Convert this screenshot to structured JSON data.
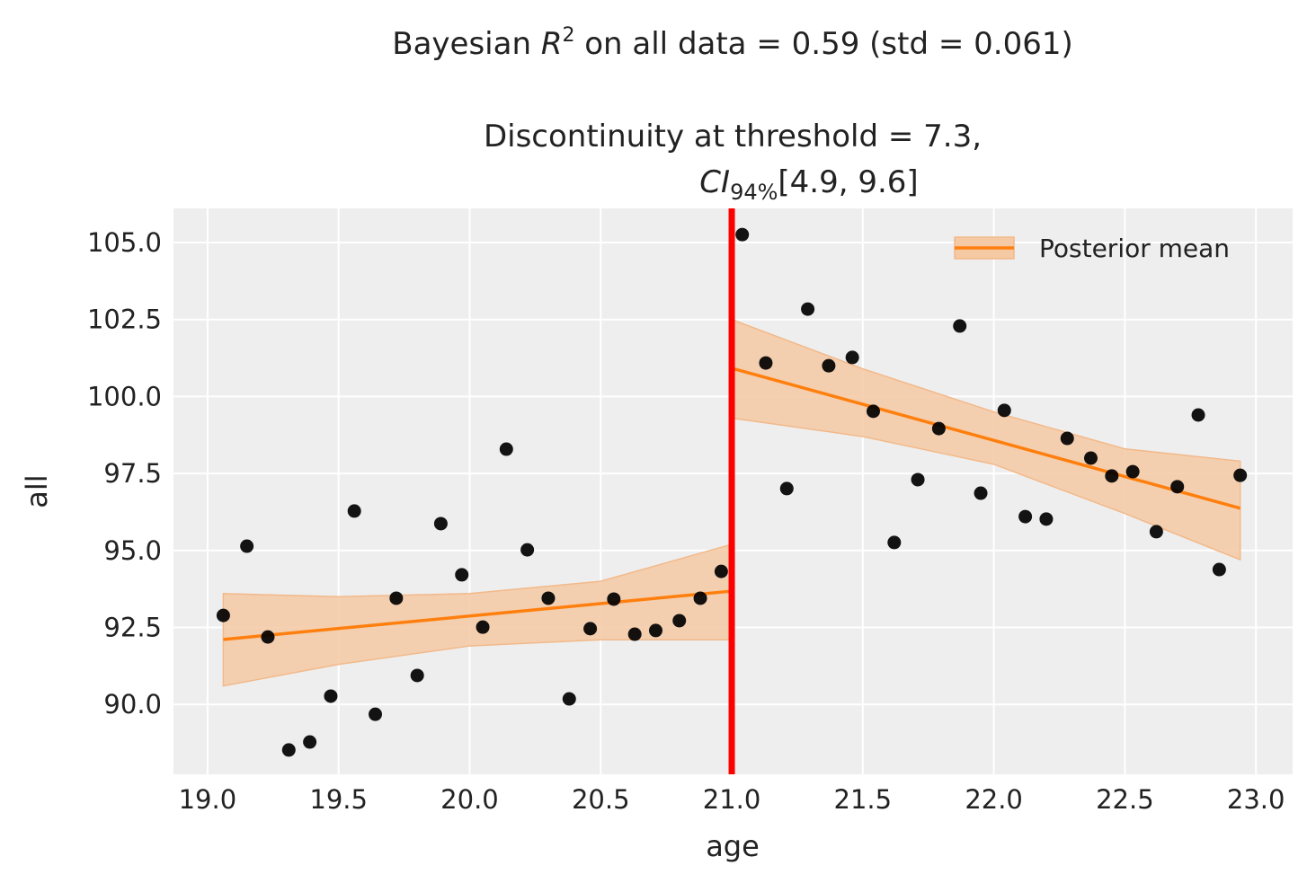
{
  "chart_data": {
    "type": "scatter",
    "title": {
      "line1_prefix": "Bayesian ",
      "line1_var": "R",
      "line1_sup": "2",
      "line1_suffix": " on all data = 0.59 (std = 0.061)",
      "line2": "Discontinuity at threshold = 7.3,",
      "line3_var": "CI",
      "line3_sub": "94%",
      "line3_suffix": "[4.9, 9.6]"
    },
    "xlabel": "age",
    "ylabel": "all",
    "xlim": [
      18.87,
      23.14
    ],
    "ylim": [
      87.73,
      106.11
    ],
    "xticks": [
      "19.0",
      "19.5",
      "20.0",
      "20.5",
      "21.0",
      "21.5",
      "22.0",
      "22.5",
      "23.0"
    ],
    "yticks": [
      "90.0",
      "92.5",
      "95.0",
      "97.5",
      "100.0",
      "102.5",
      "105.0"
    ],
    "grid": true,
    "threshold": 21.0,
    "legend": {
      "placement": "top-right",
      "entries": [
        "Posterior mean"
      ]
    },
    "colors": {
      "points": "#000000",
      "mean": "#ff7f0e",
      "band": "#f5c9a3",
      "threshold": "#ff0000",
      "background": "#eeeeee"
    },
    "points": {
      "x": [
        19.06,
        19.15,
        19.23,
        19.31,
        19.39,
        19.47,
        19.56,
        19.64,
        19.72,
        19.8,
        19.89,
        19.97,
        20.05,
        20.14,
        20.22,
        20.3,
        20.38,
        20.46,
        20.55,
        20.63,
        20.71,
        20.8,
        20.88,
        20.96,
        21.04,
        21.13,
        21.21,
        21.29,
        21.37,
        21.46,
        21.54,
        21.62,
        21.71,
        21.79,
        21.87,
        21.95,
        22.04,
        22.12,
        22.2,
        22.28,
        22.37,
        22.45,
        22.53,
        22.62,
        22.7,
        22.78,
        22.86,
        22.94
      ],
      "y": [
        92.89,
        95.14,
        92.19,
        88.52,
        88.78,
        90.27,
        96.28,
        89.68,
        93.45,
        90.94,
        95.87,
        94.21,
        92.51,
        98.29,
        95.02,
        93.45,
        90.18,
        92.46,
        93.42,
        92.28,
        92.4,
        92.72,
        93.45,
        94.32,
        105.26,
        101.09,
        97.01,
        102.84,
        101.0,
        101.27,
        99.52,
        95.26,
        97.3,
        98.96,
        102.29,
        96.86,
        99.55,
        96.1,
        96.02,
        98.64,
        98.0,
        97.42,
        97.56,
        95.61,
        97.07,
        99.4,
        94.38,
        97.44
      ]
    },
    "posterior_mean": [
      {
        "x": [
          19.06,
          21.0
        ],
        "y": [
          92.11,
          93.68
        ]
      },
      {
        "x": [
          21.0,
          22.94
        ],
        "y": [
          100.92,
          96.37
        ]
      }
    ],
    "hdi_band": [
      {
        "x": [
          19.06,
          19.5,
          20.0,
          20.5,
          21.0
        ],
        "lower": [
          90.6,
          91.3,
          91.9,
          92.1,
          92.1
        ],
        "upper": [
          93.6,
          93.5,
          93.6,
          94.0,
          95.2
        ]
      },
      {
        "x": [
          21.0,
          21.5,
          22.0,
          22.5,
          22.94
        ],
        "lower": [
          99.3,
          98.7,
          97.8,
          96.2,
          94.7
        ],
        "upper": [
          102.5,
          100.9,
          99.5,
          98.3,
          97.9
        ]
      }
    ]
  }
}
